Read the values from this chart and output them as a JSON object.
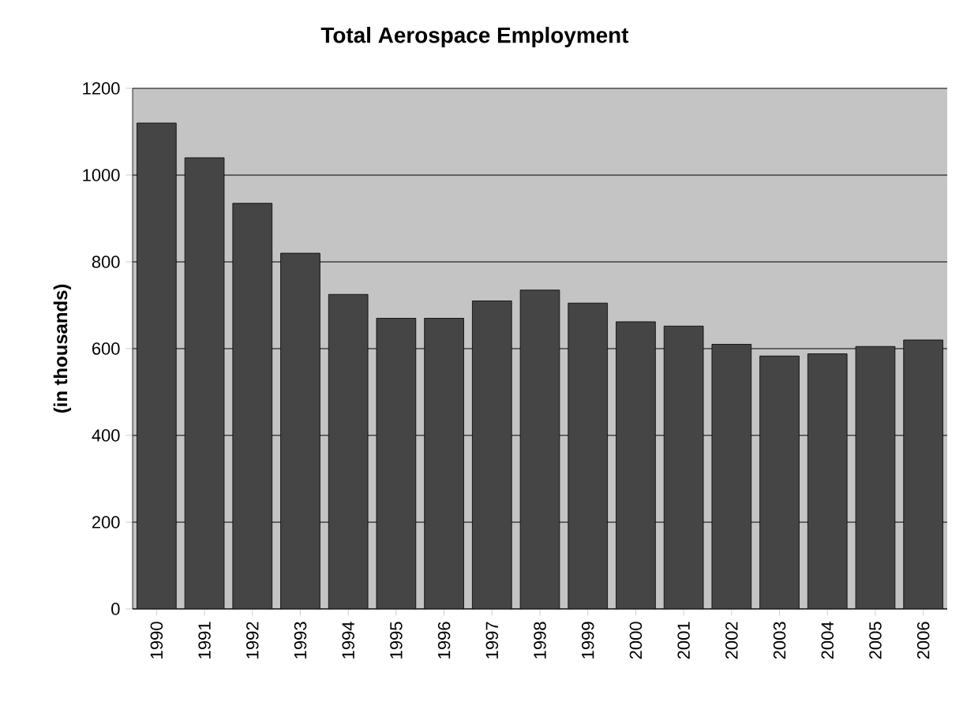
{
  "chart_data": {
    "type": "bar",
    "title": "Total Aerospace Employment",
    "ylabel": "(in thousands)",
    "categories": [
      "1990",
      "1991",
      "1992",
      "1993",
      "1994",
      "1995",
      "1996",
      "1997",
      "1998",
      "1999",
      "2000",
      "2001",
      "2002",
      "2003",
      "2004",
      "2005",
      "2006"
    ],
    "values": [
      1120,
      1040,
      935,
      820,
      725,
      670,
      670,
      710,
      735,
      705,
      662,
      652,
      610,
      583,
      588,
      605,
      620
    ],
    "color": "#454545",
    "ylim": [
      0,
      1200
    ],
    "yticks": [
      0,
      200,
      400,
      600,
      800,
      1000,
      1200
    ],
    "grid": "y"
  }
}
